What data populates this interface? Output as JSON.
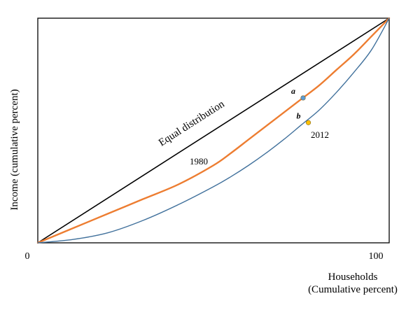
{
  "chart_data": {
    "type": "line",
    "title": "",
    "xlabel": "Households",
    "xlabel_sub": "(Cumulative percent)",
    "ylabel": "Income (cumulative percent)",
    "xlim": [
      0,
      100
    ],
    "ylim": [
      0,
      100
    ],
    "grid": false,
    "x_ticks": [
      "0",
      "100"
    ],
    "series": [
      {
        "name": "Equal distribution",
        "color": "#000000",
        "x": [
          0,
          100
        ],
        "y": [
          0,
          100
        ]
      },
      {
        "name": "1980",
        "color": "#ED7D31",
        "x": [
          0,
          10,
          20,
          30,
          40,
          50,
          55,
          60,
          65,
          70,
          75,
          80,
          85,
          90,
          95,
          100
        ],
        "y": [
          0,
          6.5,
          13,
          19.5,
          26,
          34.5,
          40,
          46,
          52,
          58,
          64,
          70,
          77,
          84,
          92,
          100
        ]
      },
      {
        "name": "2012",
        "color": "#41719C",
        "x": [
          0,
          10,
          20,
          30,
          40,
          50,
          55,
          60,
          65,
          70,
          75,
          80,
          85,
          90,
          95,
          100
        ],
        "y": [
          0,
          1.5,
          4.5,
          10,
          17,
          25,
          29.5,
          34.5,
          40,
          46,
          52.5,
          59,
          67,
          76,
          86,
          100
        ]
      }
    ],
    "points": [
      {
        "label": "a",
        "x": 75.5,
        "y": 64.5,
        "color": "#5B9BD5"
      },
      {
        "label": "b",
        "x": 77,
        "y": 53.5,
        "color": "#FFC000"
      }
    ],
    "annotations": {
      "equal_distribution": "Equal distribution",
      "year_1980": "1980",
      "year_2012": "2012"
    }
  }
}
